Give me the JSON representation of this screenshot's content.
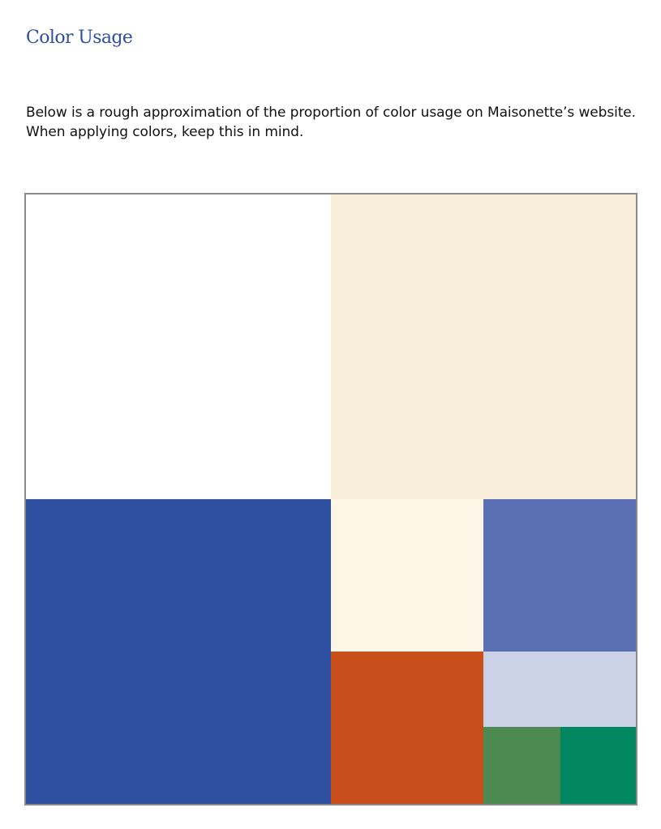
{
  "header": {
    "title": "Color Usage",
    "title_color": "#2F4FA0"
  },
  "intro": {
    "text": "Below is a rough approximation of the proportion of color usage on Maisonette’s website. When applying colors, keep this in mind."
  },
  "usage_map": {
    "border_color": "#8A8A8A",
    "swatches": [
      {
        "name": "white",
        "color": "#FFFFFF"
      },
      {
        "name": "cream",
        "color": "#F9EEDA"
      },
      {
        "name": "royal-blue",
        "color": "#2F50A1"
      },
      {
        "name": "light-cream",
        "color": "#FDF5E5"
      },
      {
        "name": "periwinkle",
        "color": "#5B70B4"
      },
      {
        "name": "burnt-orange",
        "color": "#C84E1B"
      },
      {
        "name": "pale-lavender",
        "color": "#CBD1E6"
      },
      {
        "name": "leaf-green",
        "color": "#4D8A52"
      },
      {
        "name": "emerald-green",
        "color": "#00875F"
      }
    ]
  }
}
